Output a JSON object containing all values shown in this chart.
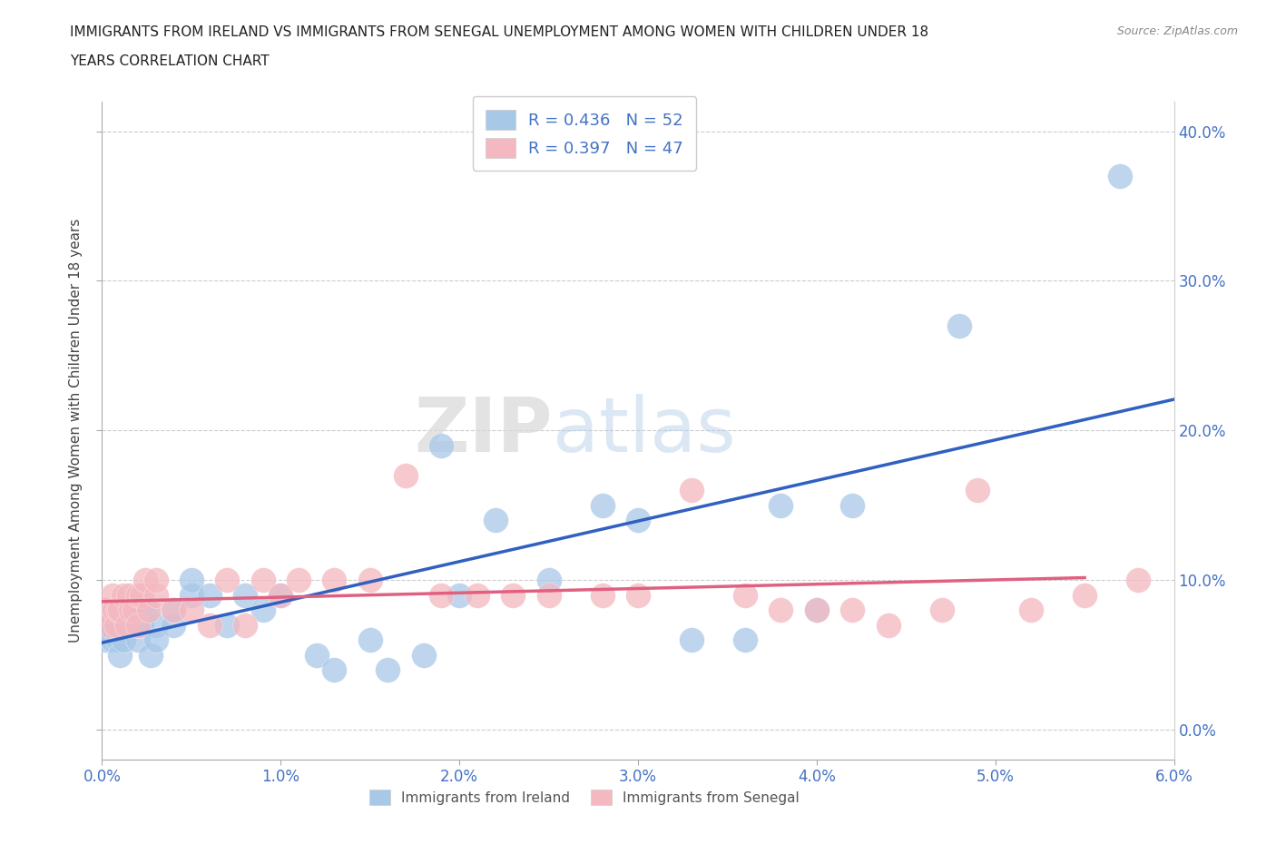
{
  "title_line1": "IMMIGRANTS FROM IRELAND VS IMMIGRANTS FROM SENEGAL UNEMPLOYMENT AMONG WOMEN WITH CHILDREN UNDER 18",
  "title_line2": "YEARS CORRELATION CHART",
  "source": "Source: ZipAtlas.com",
  "xlim": [
    0.0,
    0.06
  ],
  "ylim": [
    -0.02,
    0.42
  ],
  "ireland_color": "#a8c8e8",
  "senegal_color": "#f4b8c0",
  "ireland_line_color": "#3060c0",
  "senegal_line_color": "#e06080",
  "ireland_R": 0.436,
  "ireland_N": 52,
  "senegal_R": 0.397,
  "senegal_N": 47,
  "watermark_zip": "ZIP",
  "watermark_atlas": "atlas",
  "legend_ireland": "Immigrants from Ireland",
  "legend_senegal": "Immigrants from Senegal",
  "ireland_x": [
    0.0002,
    0.0003,
    0.0004,
    0.0005,
    0.0006,
    0.0007,
    0.0008,
    0.0009,
    0.001,
    0.0012,
    0.0013,
    0.0014,
    0.0015,
    0.0016,
    0.0017,
    0.0018,
    0.0019,
    0.002,
    0.002,
    0.0022,
    0.0023,
    0.0025,
    0.0027,
    0.003,
    0.003,
    0.004,
    0.004,
    0.005,
    0.005,
    0.006,
    0.007,
    0.008,
    0.009,
    0.01,
    0.012,
    0.013,
    0.015,
    0.016,
    0.018,
    0.019,
    0.02,
    0.022,
    0.025,
    0.028,
    0.03,
    0.033,
    0.036,
    0.038,
    0.04,
    0.042,
    0.048,
    0.057
  ],
  "ireland_y": [
    0.06,
    0.07,
    0.08,
    0.07,
    0.06,
    0.08,
    0.07,
    0.06,
    0.05,
    0.06,
    0.07,
    0.07,
    0.07,
    0.07,
    0.08,
    0.08,
    0.08,
    0.06,
    0.07,
    0.07,
    0.08,
    0.08,
    0.05,
    0.07,
    0.06,
    0.07,
    0.08,
    0.09,
    0.1,
    0.09,
    0.07,
    0.09,
    0.08,
    0.09,
    0.05,
    0.04,
    0.06,
    0.04,
    0.05,
    0.19,
    0.09,
    0.14,
    0.1,
    0.15,
    0.14,
    0.06,
    0.06,
    0.15,
    0.08,
    0.15,
    0.27,
    0.37
  ],
  "senegal_x": [
    0.0002,
    0.0004,
    0.0006,
    0.0007,
    0.0008,
    0.0009,
    0.001,
    0.0012,
    0.0014,
    0.0015,
    0.0016,
    0.0018,
    0.002,
    0.002,
    0.0022,
    0.0024,
    0.0026,
    0.003,
    0.003,
    0.004,
    0.005,
    0.006,
    0.007,
    0.008,
    0.009,
    0.01,
    0.011,
    0.013,
    0.015,
    0.017,
    0.019,
    0.021,
    0.023,
    0.025,
    0.028,
    0.03,
    0.033,
    0.036,
    0.038,
    0.04,
    0.042,
    0.044,
    0.047,
    0.049,
    0.052,
    0.055,
    0.058
  ],
  "senegal_y": [
    0.08,
    0.07,
    0.09,
    0.08,
    0.07,
    0.08,
    0.08,
    0.09,
    0.07,
    0.09,
    0.08,
    0.08,
    0.07,
    0.09,
    0.09,
    0.1,
    0.08,
    0.09,
    0.1,
    0.08,
    0.08,
    0.07,
    0.1,
    0.07,
    0.1,
    0.09,
    0.1,
    0.1,
    0.1,
    0.17,
    0.09,
    0.09,
    0.09,
    0.09,
    0.09,
    0.09,
    0.16,
    0.09,
    0.08,
    0.08,
    0.08,
    0.07,
    0.08,
    0.16,
    0.08,
    0.09,
    0.1
  ]
}
